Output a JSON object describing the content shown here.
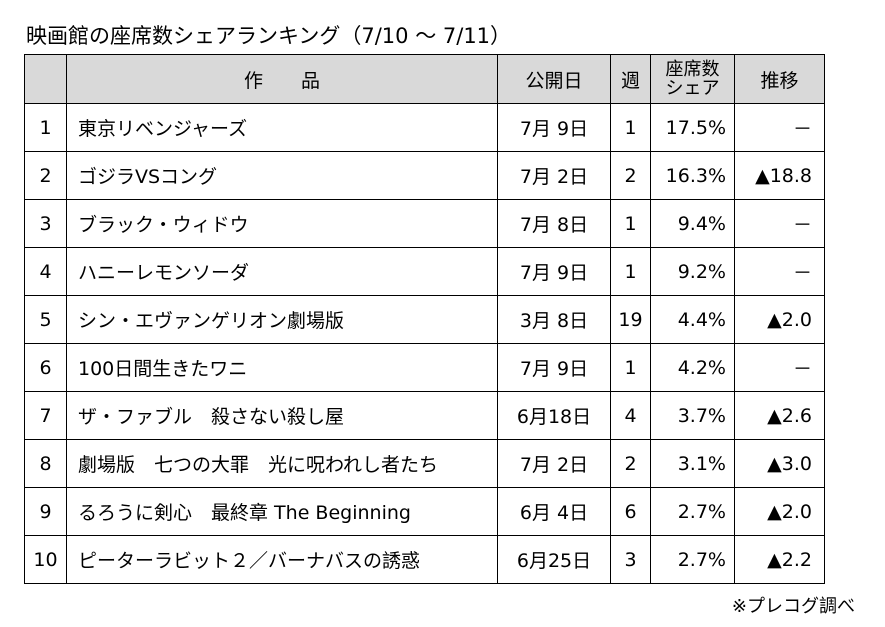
{
  "title": "映画館の座席数シェアランキング（7/10 ～ 7/11）",
  "headers": {
    "rank": "",
    "title": "作　　品",
    "release": "公開日",
    "week": "週",
    "share_line1": "座席数",
    "share_line2": "シェア",
    "trend": "推移"
  },
  "rows": [
    {
      "rank": "1",
      "title": "東京リベンジャーズ",
      "release": "7月 9日",
      "week": "1",
      "share": "17.5%",
      "trend": "－"
    },
    {
      "rank": "2",
      "title": "ゴジラVSコング",
      "release": "7月 2日",
      "week": "2",
      "share": "16.3%",
      "trend": "▲18.8"
    },
    {
      "rank": "3",
      "title": "ブラック・ウィドウ",
      "release": "7月 8日",
      "week": "1",
      "share": "9.4%",
      "trend": "－"
    },
    {
      "rank": "4",
      "title": "ハニーレモンソーダ",
      "release": "7月 9日",
      "week": "1",
      "share": "9.2%",
      "trend": "－"
    },
    {
      "rank": "5",
      "title": "シン・エヴァンゲリオン劇場版",
      "release": "3月 8日",
      "week": "19",
      "share": "4.4%",
      "trend": "▲2.0"
    },
    {
      "rank": "6",
      "title": "100日間生きたワニ",
      "release": "7月 9日",
      "week": "1",
      "share": "4.2%",
      "trend": "－"
    },
    {
      "rank": "7",
      "title": "ザ・ファブル　殺さない殺し屋",
      "release": "6月18日",
      "week": "4",
      "share": "3.7%",
      "trend": "▲2.6"
    },
    {
      "rank": "8",
      "title": "劇場版　七つの大罪　光に呪われし者たち",
      "release": "7月 2日",
      "week": "2",
      "share": "3.1%",
      "trend": "▲3.0"
    },
    {
      "rank": "9",
      "title": "るろうに剣心　最終章 The Beginning",
      "release": "6月 4日",
      "week": "6",
      "share": "2.7%",
      "trend": "▲2.0"
    },
    {
      "rank": "10",
      "title": "ピーターラビット２／バーナバスの誘惑",
      "release": "6月25日",
      "week": "3",
      "share": "2.7%",
      "trend": "▲2.2"
    }
  ],
  "note": "※プレコグ調べ"
}
